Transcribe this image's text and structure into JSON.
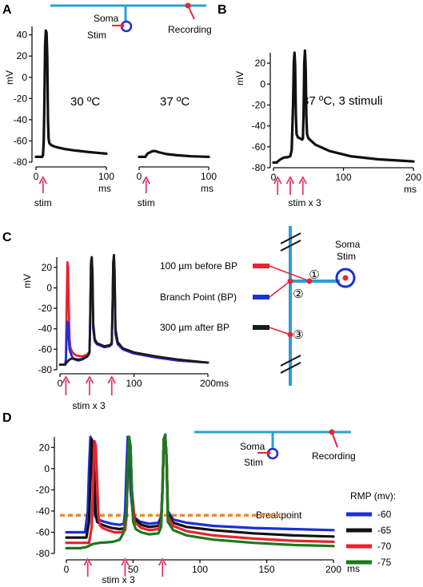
{
  "figure": {
    "colors": {
      "axon": "#2a9fd6",
      "marker": "#e8233a",
      "stim_arrow": "#e23a6b",
      "soma": "#1c2fd6",
      "breakpoint": "#f0882c",
      "trace_black": "#111111"
    }
  },
  "chart_data": [
    {
      "panel": "A",
      "type": "line",
      "ylabel": "mV",
      "ylim": [
        -80,
        48
      ],
      "yticks": [
        "40",
        "20",
        "0",
        "-20",
        "-40",
        "-60",
        "-80"
      ],
      "subplots": [
        {
          "annotation": "30 ºC",
          "xlim": [
            0,
            100
          ],
          "xticks": [
            "0",
            "100"
          ],
          "xunit": "ms",
          "stim_label": "stim",
          "stim_times": [
            10
          ],
          "series": [
            {
              "color": "#111111",
              "x": [
                0,
                9,
                10,
                11,
                12,
                13,
                14,
                15,
                16,
                17,
                18,
                19,
                20,
                22,
                25,
                30,
                40,
                55,
                75,
                100
              ],
              "y": [
                -75,
                -75,
                -73,
                -60,
                -20,
                30,
                44,
                42,
                20,
                -40,
                -58,
                -62,
                -63,
                -64,
                -65,
                -66,
                -67.5,
                -69,
                -70.5,
                -72
              ]
            }
          ]
        },
        {
          "annotation": "37 ºC",
          "xlim": [
            0,
            100
          ],
          "xticks": [
            "0",
            "100"
          ],
          "xunit": "ms",
          "stim_label": "stim",
          "stim_times": [
            10
          ],
          "series": [
            {
              "color": "#111111",
              "x": [
                0,
                9,
                10,
                12,
                15,
                18,
                20,
                22,
                25,
                30,
                40,
                55,
                75,
                100
              ],
              "y": [
                -75,
                -75,
                -74,
                -72,
                -71,
                -70,
                -69.5,
                -69.5,
                -70,
                -71,
                -72.5,
                -73.5,
                -74.5,
                -75
              ]
            }
          ]
        }
      ],
      "inset": {
        "soma_label": "Soma",
        "stim_label": "Stim",
        "recording_label": "Recording"
      }
    },
    {
      "panel": "B",
      "type": "line",
      "ylabel": "mV",
      "annotation": "37 ºC, 3 stimuli",
      "xlim": [
        0,
        200
      ],
      "xticks": [
        "0",
        "100",
        "200"
      ],
      "xunit": "ms",
      "ylim": [
        -80,
        30
      ],
      "yticks": [
        "20",
        "0",
        "-20",
        "-40",
        "-60",
        "-80"
      ],
      "stim_label": "stim x 3",
      "stim_times": [
        6,
        24,
        42
      ],
      "series": [
        {
          "color": "#111111",
          "x": [
            0,
            5,
            6,
            10,
            14,
            18,
            20,
            24,
            26,
            28,
            29,
            30,
            31,
            32,
            33,
            35,
            38,
            41,
            42,
            43,
            44,
            45,
            46,
            47,
            48,
            50,
            60,
            80,
            110,
            150,
            200
          ],
          "y": [
            -75,
            -75,
            -74,
            -72,
            -70.5,
            -70,
            -70,
            -69,
            -63,
            -20,
            20,
            30,
            18,
            -30,
            -48,
            -51,
            -52,
            -53,
            -52,
            -30,
            20,
            32,
            15,
            -30,
            -48,
            -52,
            -58,
            -64,
            -69,
            -72,
            -74
          ]
        }
      ]
    },
    {
      "panel": "C",
      "type": "line",
      "ylabel": "mV",
      "xlim": [
        0,
        200
      ],
      "xticks": [
        "0",
        "100",
        "200"
      ],
      "xunit": "ms",
      "ylim": [
        -80,
        30
      ],
      "yticks": [
        "20",
        "0",
        "-20",
        "-40",
        "-60",
        "-80"
      ],
      "stim_label": "stim x 3",
      "stim_times": [
        8,
        40,
        70
      ],
      "series": [
        {
          "name": "100 µm before BP",
          "color": "#e8232f",
          "x": [
            0,
            7,
            8,
            9,
            10,
            11,
            12,
            13,
            14,
            16,
            18,
            22,
            30,
            37,
            40,
            41,
            42,
            43,
            44,
            45,
            47,
            50,
            60,
            67,
            70,
            71,
            72,
            73,
            74,
            75,
            78,
            85,
            100,
            130,
            160,
            200
          ],
          "y": [
            -75,
            -75,
            -70,
            -20,
            25,
            20,
            -20,
            -50,
            -58,
            -62,
            -64,
            -66,
            -67,
            -65,
            -62,
            -30,
            25,
            30,
            10,
            -40,
            -52,
            -55,
            -58,
            -57,
            -55,
            -20,
            25,
            32,
            10,
            -45,
            -55,
            -60,
            -64,
            -68,
            -71,
            -73
          ]
        },
        {
          "name": "Branch Point (BP)",
          "color": "#1c2fe0",
          "x": [
            0,
            7,
            8,
            9,
            10,
            11,
            12,
            13,
            15,
            17,
            20,
            25,
            30,
            37,
            40,
            41,
            42,
            43,
            44,
            45,
            47,
            50,
            60,
            67,
            70,
            71,
            72,
            73,
            74,
            75,
            78,
            85,
            100,
            130,
            160,
            200
          ],
          "y": [
            -75,
            -75,
            -70,
            -50,
            -33,
            -36,
            -50,
            -60,
            -65,
            -68,
            -70,
            -71,
            -70,
            -67,
            -63,
            -30,
            22,
            28,
            5,
            -40,
            -52,
            -55,
            -58,
            -57,
            -55,
            -20,
            22,
            30,
            5,
            -45,
            -55,
            -60,
            -64,
            -68,
            -71,
            -73
          ]
        },
        {
          "name": "300 µm after BP",
          "color": "#1a1a1a",
          "x": [
            0,
            7,
            8,
            10,
            13,
            16,
            20,
            25,
            30,
            37,
            39,
            40,
            41,
            42,
            43,
            44,
            45,
            47,
            50,
            60,
            67,
            69,
            70,
            71,
            72,
            73,
            74,
            75,
            78,
            85,
            100,
            130,
            160,
            200
          ],
          "y": [
            -75,
            -75,
            -74,
            -72,
            -70,
            -69,
            -69.5,
            -70,
            -69.5,
            -67,
            -65,
            -62,
            -20,
            25,
            30,
            15,
            -35,
            -50,
            -54,
            -57,
            -56,
            -55,
            -53,
            -20,
            25,
            32,
            15,
            -40,
            -53,
            -59,
            -63,
            -67,
            -70,
            -73
          ]
        }
      ],
      "diagram": {
        "marker_labels": [
          "①",
          "②",
          "③"
        ],
        "soma_label": "Soma",
        "stim_label": "Stim"
      }
    },
    {
      "panel": "D",
      "type": "line",
      "ylabel": "",
      "xlim": [
        0,
        200
      ],
      "xticks": [
        "0",
        "50",
        "100",
        "150",
        "200"
      ],
      "xunit": "ms",
      "ylim": [
        -80,
        30
      ],
      "yticks": [
        "20",
        "0",
        "-20",
        "-40",
        "-60",
        "-80"
      ],
      "stim_label": "stim x 3",
      "stim_times": [
        16,
        44,
        72
      ],
      "breakpoint": {
        "label": "Breakpoint",
        "y": -44,
        "x_end": 160
      },
      "legend_title": "RMP (mv):",
      "series": [
        {
          "name": "-60",
          "color": "#1c2fd6",
          "x": [
            0,
            14,
            16,
            17,
            18,
            19,
            20,
            21,
            22,
            24,
            28,
            34,
            40,
            43,
            44,
            45,
            46,
            47,
            48,
            50,
            55,
            62,
            69,
            71,
            72,
            73,
            74,
            75,
            76,
            80,
            90,
            110,
            140,
            170,
            200
          ],
          "y": [
            -60,
            -60,
            -40,
            0,
            30,
            22,
            -10,
            -40,
            -46,
            -48,
            -50,
            -52,
            -53,
            -52,
            -40,
            0,
            30,
            20,
            -20,
            -45,
            -50,
            -52,
            -51,
            -45,
            -20,
            28,
            32,
            10,
            -40,
            -48,
            -51,
            -54,
            -56,
            -57,
            -58
          ]
        },
        {
          "name": "-65",
          "color": "#111111",
          "x": [
            0,
            15,
            17,
            18,
            19,
            20,
            21,
            22,
            23,
            25,
            29,
            34,
            40,
            44,
            45,
            46,
            47,
            48,
            49,
            51,
            56,
            62,
            69,
            71,
            72,
            73,
            74,
            75,
            76,
            80,
            90,
            110,
            140,
            170,
            200
          ],
          "y": [
            -65,
            -65,
            -50,
            -10,
            28,
            22,
            -10,
            -42,
            -50,
            -52,
            -54,
            -56,
            -57,
            -56,
            -45,
            0,
            29,
            20,
            -20,
            -47,
            -53,
            -55,
            -54,
            -48,
            -20,
            28,
            31,
            10,
            -42,
            -51,
            -55,
            -58,
            -61,
            -63,
            -64
          ]
        },
        {
          "name": "-70",
          "color": "#e8232f",
          "x": [
            0,
            17,
            19,
            20,
            21,
            22,
            23,
            24,
            25,
            27,
            31,
            36,
            41,
            44,
            45,
            46,
            47,
            48,
            49,
            51,
            56,
            62,
            69,
            71,
            72,
            73,
            74,
            75,
            76,
            80,
            90,
            110,
            140,
            170,
            200
          ],
          "y": [
            -70,
            -70,
            -55,
            -15,
            26,
            22,
            -10,
            -45,
            -53,
            -56,
            -58,
            -60,
            -60,
            -58,
            -45,
            0,
            30,
            20,
            -20,
            -50,
            -56,
            -58,
            -57,
            -50,
            -20,
            28,
            31,
            10,
            -45,
            -54,
            -59,
            -63,
            -66,
            -68,
            -69
          ]
        },
        {
          "name": "-75",
          "color": "#1a7a1a",
          "x": [
            0,
            10,
            15,
            20,
            25,
            30,
            35,
            40,
            43,
            45,
            46,
            47,
            48,
            49,
            50,
            52,
            56,
            62,
            69,
            71,
            72,
            73,
            74,
            75,
            76,
            80,
            90,
            110,
            140,
            170,
            200
          ],
          "y": [
            -75,
            -75,
            -74,
            -71,
            -70,
            -69.5,
            -69,
            -67,
            -60,
            -40,
            0,
            30,
            22,
            -20,
            -50,
            -57,
            -60,
            -62,
            -61,
            -55,
            -20,
            28,
            32,
            10,
            -50,
            -58,
            -63,
            -67,
            -70,
            -72,
            -73
          ]
        }
      ],
      "inset": {
        "soma_label": "Soma",
        "stim_label": "Stim",
        "recording_label": "Recording"
      }
    }
  ],
  "panels": {
    "A": {
      "letter": "A"
    },
    "B": {
      "letter": "B"
    },
    "C": {
      "letter": "C"
    },
    "D": {
      "letter": "D"
    }
  }
}
